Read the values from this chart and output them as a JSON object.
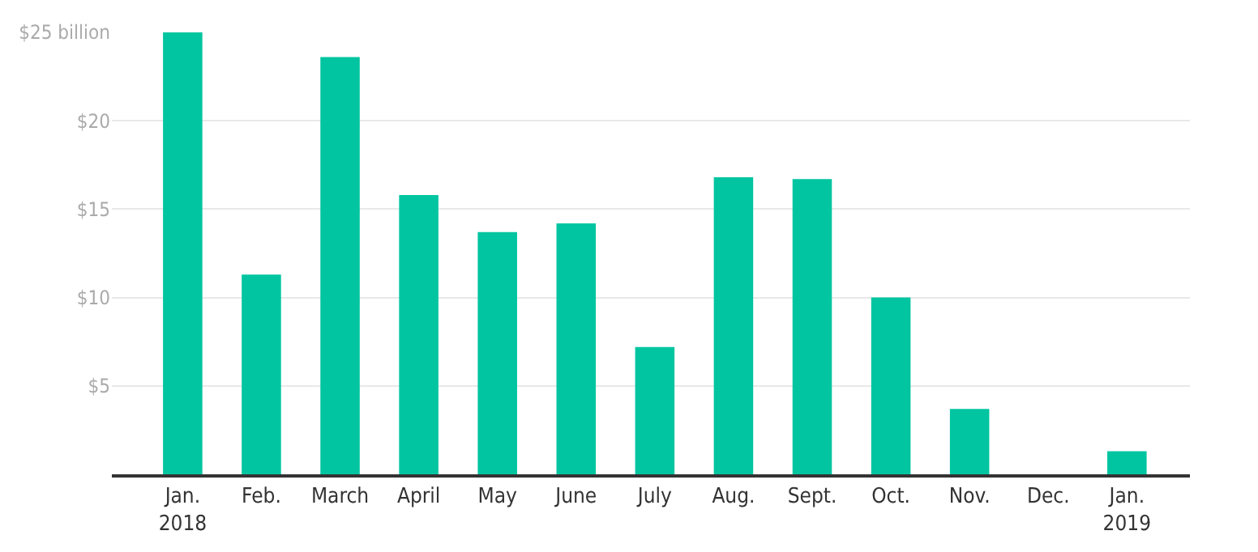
{
  "chart_data": {
    "type": "bar",
    "categories": [
      "Jan.\n2018",
      "Feb.",
      "March",
      "April",
      "May",
      "June",
      "July",
      "Aug.",
      "Sept.",
      "Oct.",
      "Nov.",
      "Dec.",
      "Jan.\n2019"
    ],
    "values": [
      25,
      11.3,
      23.6,
      15.8,
      13.7,
      14.2,
      7.2,
      16.8,
      16.7,
      10,
      3.7,
      0,
      1.3
    ],
    "color": "#00c5a0",
    "ylim": [
      0,
      25
    ],
    "yticks": [
      {
        "value": 5,
        "label": "$5"
      },
      {
        "value": 10,
        "label": "$10"
      },
      {
        "value": 15,
        "label": "$15"
      },
      {
        "value": 20,
        "label": "$20"
      },
      {
        "value": 25,
        "label": "$25 billion"
      }
    ],
    "grid": "y"
  }
}
